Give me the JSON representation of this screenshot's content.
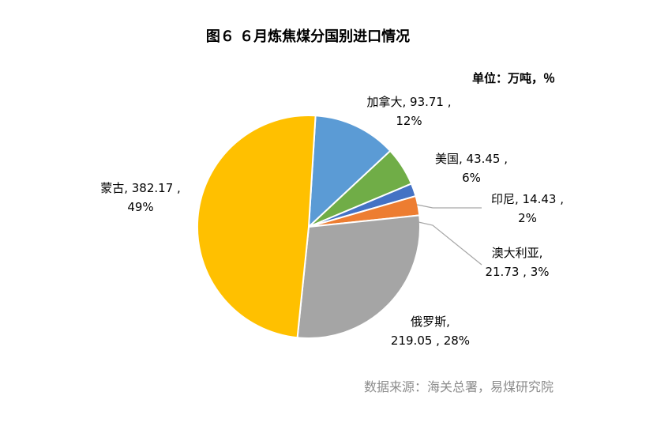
{
  "title": "图６ ６月炼焦煤分国别进口情况",
  "unit": "单位：万吨，％",
  "source": "数据来源：海关总署，易煤研究院",
  "chart_data": {
    "type": "pie",
    "title": "图６ ６月炼焦煤分国别进口情况",
    "unit": "单位：万吨，％",
    "slices": [
      {
        "name": "加拿大",
        "value": 93.71,
        "percent": 12,
        "color": "#5B9BD5",
        "line1": "加拿大, 93.71 ,",
        "line2": "12%"
      },
      {
        "name": "美国",
        "value": 43.45,
        "percent": 6,
        "color": "#70AD47",
        "line1": "美国, 43.45 ,",
        "line2": "6%"
      },
      {
        "name": "印尼",
        "value": 14.43,
        "percent": 2,
        "color": "#4472C4",
        "line1": "印尼, 14.43 ,",
        "line2": "2%"
      },
      {
        "name": "澳大利亚",
        "value": 21.73,
        "percent": 3,
        "color": "#ED7D31",
        "line1": "澳大利亚,",
        "line2": "21.73 , 3%"
      },
      {
        "name": "俄罗斯",
        "value": 219.05,
        "percent": 28,
        "color": "#A5A5A5",
        "line1": "俄罗斯,",
        "line2": "219.05 , 28%"
      },
      {
        "name": "蒙古",
        "value": 382.17,
        "percent": 49,
        "color": "#FFC000",
        "line1": "蒙古, 382.17 ,",
        "line2": "49%"
      }
    ]
  }
}
